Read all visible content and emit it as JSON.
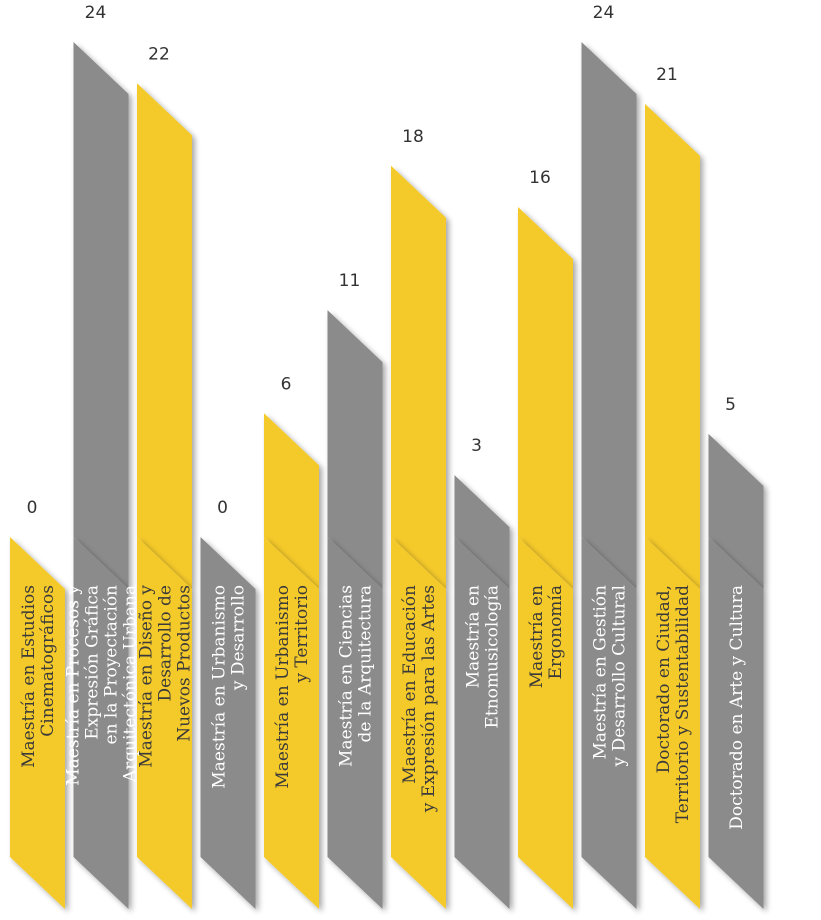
{
  "chart_data": {
    "type": "bar",
    "title": "",
    "xlabel": "",
    "ylabel": "",
    "ylim": [
      0,
      24
    ],
    "grid": false,
    "legend": "none",
    "colors": {
      "yellow": "#F4C92A",
      "gray": "#8B8B8B",
      "text_on_yellow": "#3a3a3a",
      "text_on_gray": "#ffffff"
    },
    "categories": [
      [
        "Maestría en Estudios",
        "Cinematográficos"
      ],
      [
        "Maestría en Procesos y",
        "Expresión Gráfica",
        "en la Proyectación",
        "Arquitectónica Urbana"
      ],
      [
        "Maestría en Diseño y",
        "Desarrollo de",
        "Nuevos Productos"
      ],
      [
        "Maestría en Urbanismo",
        "y Desarrollo"
      ],
      [
        "Maestría en Urbanismo",
        "y Territorio"
      ],
      [
        "Maestría en Ciencias",
        "de la Arquitectura"
      ],
      [
        "Maestría en Educación",
        "y Expresión para las Artes"
      ],
      [
        "Maestría en",
        "Etnomusicología"
      ],
      [
        "Maestría en",
        "Ergonomía"
      ],
      [
        "Maestría en Gestión",
        "y Desarrollo Cultural"
      ],
      [
        "Doctorado en Ciudad,",
        "Territorio y Sustentabilidad"
      ],
      [
        "Doctorado en Arte y Cultura"
      ]
    ],
    "values": [
      0,
      24,
      22,
      0,
      6,
      11,
      18,
      3,
      16,
      24,
      21,
      5
    ],
    "bar_colors": [
      "yellow",
      "gray",
      "yellow",
      "gray",
      "yellow",
      "gray",
      "yellow",
      "gray",
      "yellow",
      "gray",
      "yellow",
      "gray"
    ],
    "value_labels": [
      "0",
      "24",
      "22",
      "0",
      "6",
      "11",
      "18",
      "3",
      "16",
      "24",
      "21",
      "5"
    ]
  }
}
